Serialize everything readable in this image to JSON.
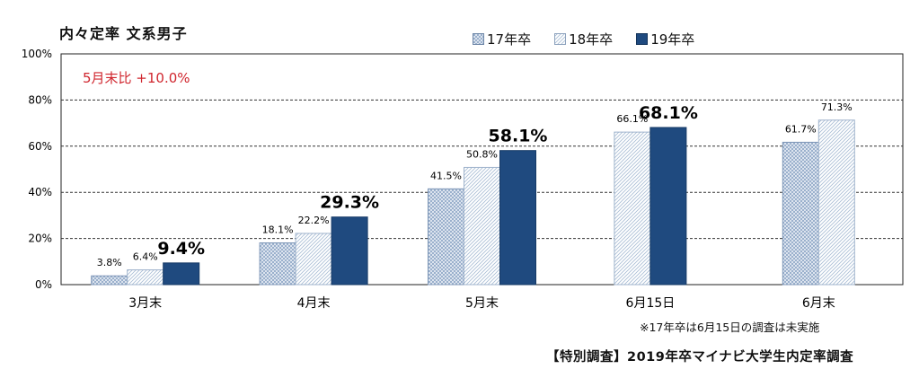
{
  "title": "内々定率 文系男子",
  "note": "※17年卒は6月15日の調査は未実施",
  "source": "【特別調査】2019年卒マイナビ大学生内定率調査",
  "annotation": "5月末比 +10.0%",
  "colors": {
    "s17": "#a9bfda",
    "s18": "#c9d6e6",
    "s19": "#1f4a7f",
    "annotation": "#d0262e"
  },
  "chart_data": {
    "type": "bar",
    "categories": [
      "3月末",
      "4月末",
      "5月末",
      "6月15日",
      "6月末"
    ],
    "series": [
      {
        "name": "17年卒",
        "values": [
          3.8,
          18.1,
          41.5,
          null,
          61.7
        ],
        "labels": [
          "3.8%",
          "18.1%",
          "41.5%",
          "",
          "61.7%"
        ]
      },
      {
        "name": "18年卒",
        "values": [
          6.4,
          22.2,
          50.8,
          66.1,
          71.3
        ],
        "labels": [
          "6.4%",
          "22.2%",
          "50.8%",
          "66.1%",
          "71.3%"
        ]
      },
      {
        "name": "19年卒",
        "values": [
          9.4,
          29.3,
          58.1,
          68.1,
          null
        ],
        "labels": [
          "9.4%",
          "29.3%",
          "58.1%",
          "68.1%",
          ""
        ]
      }
    ],
    "yticks": [
      "0%",
      "20%",
      "40%",
      "60%",
      "80%",
      "100%"
    ],
    "ylim": [
      0,
      100
    ],
    "grid": true,
    "legend_position": "top"
  }
}
